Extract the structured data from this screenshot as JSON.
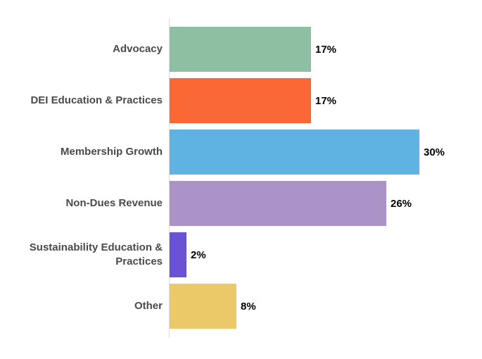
{
  "chart_data": {
    "type": "bar",
    "orientation": "horizontal",
    "title": "",
    "xlabel": "",
    "ylabel": "",
    "categories": [
      "Advocacy",
      "DEI Education & Practices",
      "Membership Growth",
      "Non-Dues Revenue",
      "Sustainability Education & Practices",
      "Other"
    ],
    "values": [
      17,
      17,
      30,
      26,
      2,
      8
    ],
    "value_labels": [
      "17%",
      "17%",
      "30%",
      "26%",
      "2%",
      "8%"
    ],
    "unit": "percent",
    "xlim": [
      0,
      35
    ],
    "grid": false,
    "legend": "none",
    "annotation_position": "outside-end",
    "bar_colors": [
      "#8dc0a2",
      "#fa6935",
      "#5fb3e2",
      "#ab92c7",
      "#6a51d8",
      "#ecc968"
    ],
    "category_label_color": "#4a4a4a",
    "value_label_color": "#000000",
    "axis_line_color": "#dadada",
    "background_color": "#ffffff"
  }
}
